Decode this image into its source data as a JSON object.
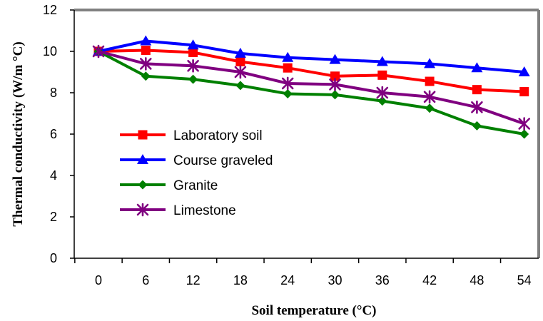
{
  "chart_data": {
    "type": "line",
    "title": "",
    "xlabel": "Soil temperature (°C)",
    "ylabel": "Thermal conductivity (W/m °C)",
    "x": [
      0,
      6,
      12,
      18,
      24,
      30,
      36,
      42,
      48,
      54
    ],
    "ylim": [
      0,
      12
    ],
    "yticks": [
      0,
      2,
      4,
      6,
      8,
      10,
      12
    ],
    "grid": false,
    "legend_position": "center-left",
    "series": [
      {
        "name": "Laboratory soil",
        "color": "#ff0000",
        "marker": "square",
        "values": [
          10.0,
          10.05,
          9.95,
          9.5,
          9.2,
          8.8,
          8.85,
          8.55,
          8.15,
          8.05
        ]
      },
      {
        "name": "Course graveled",
        "color": "#0000ff",
        "marker": "triangle",
        "values": [
          10.0,
          10.5,
          10.3,
          9.9,
          9.7,
          9.6,
          9.5,
          9.4,
          9.2,
          9.0
        ]
      },
      {
        "name": "Granite",
        "color": "#008000",
        "marker": "diamond",
        "values": [
          10.0,
          8.8,
          8.65,
          8.35,
          7.95,
          7.9,
          7.6,
          7.25,
          6.4,
          6.0
        ]
      },
      {
        "name": "Limestone",
        "color": "#800080",
        "marker": "asterisk",
        "values": [
          10.0,
          9.4,
          9.3,
          9.0,
          8.45,
          8.4,
          8.0,
          7.8,
          7.3,
          6.5
        ]
      }
    ]
  }
}
